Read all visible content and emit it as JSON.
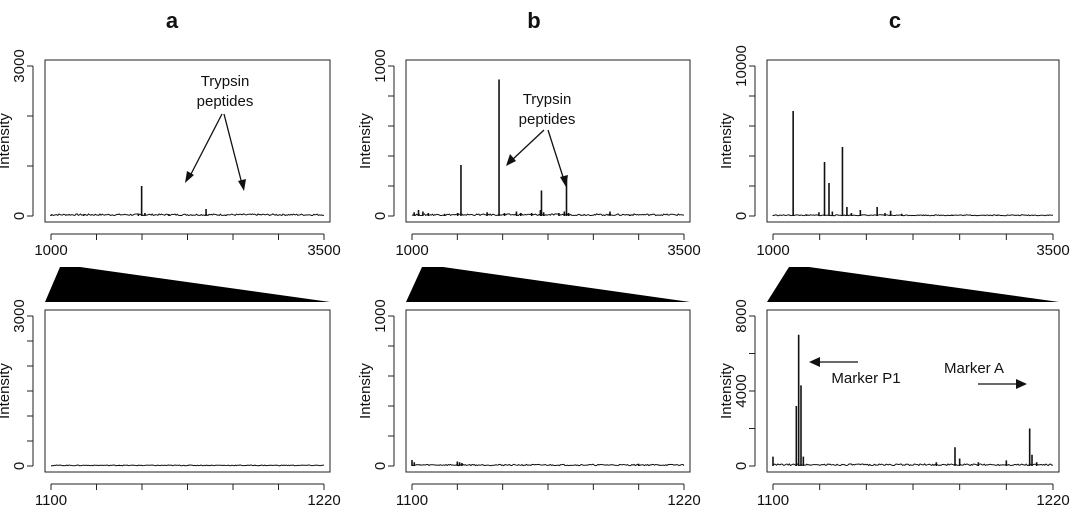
{
  "panel_letters": [
    "a",
    "b",
    "c"
  ],
  "annotations": {
    "trypsin_line1": "Trypsin",
    "trypsin_line2": "peptides",
    "marker_p1": "Marker P1",
    "marker_a": "Marker A"
  },
  "chart_data": [
    {
      "id": "a-top",
      "type": "line",
      "panel": "a",
      "ylabel": "Intensity",
      "xlim": [
        1000,
        3500
      ],
      "ylim": [
        0,
        3000
      ],
      "yticks": [
        0,
        1000,
        2000,
        3000
      ],
      "yticklabels": [
        "0",
        "",
        "",
        "3000"
      ],
      "xticklabels": [
        "1000",
        "3500"
      ],
      "baseline": 30,
      "peaks": [
        [
          1000,
          25
        ],
        [
          1300,
          20
        ],
        [
          1800,
          50
        ],
        [
          1830,
          600
        ],
        [
          1860,
          60
        ],
        [
          2080,
          40
        ],
        [
          2420,
          140
        ],
        [
          2600,
          20
        ]
      ]
    },
    {
      "id": "b-top",
      "type": "line",
      "panel": "b",
      "ylabel": "Intensity",
      "xlim": [
        1000,
        3500
      ],
      "ylim": [
        0,
        1000
      ],
      "yticks": [
        0,
        200,
        400,
        600,
        800,
        1000
      ],
      "yticklabels": [
        "0",
        "",
        "",
        "",
        "",
        "1000"
      ],
      "xticklabels": [
        "1000",
        "3500"
      ],
      "baseline": 10,
      "peaks": [
        [
          1020,
          25
        ],
        [
          1060,
          40
        ],
        [
          1100,
          30
        ],
        [
          1150,
          20
        ],
        [
          1300,
          15
        ],
        [
          1420,
          20
        ],
        [
          1450,
          340
        ],
        [
          1690,
          25
        ],
        [
          1800,
          910
        ],
        [
          1850,
          20
        ],
        [
          1960,
          30
        ],
        [
          2000,
          20
        ],
        [
          2100,
          20
        ],
        [
          2180,
          40
        ],
        [
          2190,
          170
        ],
        [
          2210,
          25
        ],
        [
          2350,
          20
        ],
        [
          2400,
          30
        ],
        [
          2420,
          270
        ],
        [
          2440,
          20
        ],
        [
          2820,
          30
        ],
        [
          3000,
          10
        ]
      ]
    },
    {
      "id": "c-top",
      "type": "line",
      "panel": "c",
      "ylabel": "Intensity",
      "xlim": [
        1000,
        3500
      ],
      "ylim": [
        0,
        10000
      ],
      "yticks": [
        0,
        2000,
        4000,
        6000,
        8000,
        10000
      ],
      "yticklabels": [
        "0",
        "",
        "",
        "",
        "",
        "10000"
      ],
      "xticklabels": [
        "1000",
        "3500"
      ],
      "baseline": 60,
      "peaks": [
        [
          1000,
          40
        ],
        [
          1180,
          7000
        ],
        [
          1300,
          80
        ],
        [
          1410,
          250
        ],
        [
          1460,
          3600
        ],
        [
          1500,
          2200
        ],
        [
          1530,
          300
        ],
        [
          1620,
          4600
        ],
        [
          1660,
          600
        ],
        [
          1700,
          200
        ],
        [
          1780,
          400
        ],
        [
          1930,
          600
        ],
        [
          2000,
          200
        ],
        [
          2050,
          350
        ],
        [
          2150,
          150
        ],
        [
          2600,
          80
        ],
        [
          3000,
          60
        ]
      ]
    },
    {
      "id": "a-bottom",
      "type": "line",
      "panel": "a",
      "ylabel": "Intensity",
      "xlim": [
        1100,
        1220
      ],
      "ylim": [
        0,
        3000
      ],
      "yticks": [
        0,
        500,
        1000,
        1500,
        2000,
        2500,
        3000
      ],
      "yticklabels": [
        "0",
        "",
        "",
        "",
        "",
        "",
        "3000"
      ],
      "xticklabels": [
        "1100",
        "1220"
      ],
      "baseline": 15,
      "peaks": [
        [
          1130,
          25
        ],
        [
          1160,
          20
        ],
        [
          1190,
          20
        ]
      ]
    },
    {
      "id": "b-bottom",
      "type": "line",
      "panel": "b",
      "ylabel": "Intensity",
      "xlim": [
        1100,
        1220
      ],
      "ylim": [
        0,
        1000
      ],
      "yticks": [
        0,
        200,
        400,
        600,
        800,
        1000
      ],
      "yticklabels": [
        "0",
        "",
        "",
        "",
        "",
        "1000"
      ],
      "xticklabels": [
        "1100",
        "1220"
      ],
      "baseline": 8,
      "peaks": [
        [
          1100,
          40
        ],
        [
          1101,
          25
        ],
        [
          1120,
          30
        ],
        [
          1121,
          25
        ],
        [
          1122,
          20
        ],
        [
          1200,
          15
        ]
      ]
    },
    {
      "id": "c-bottom",
      "type": "line",
      "panel": "c",
      "ylabel": "Intensity",
      "xlim": [
        1100,
        1220
      ],
      "ylim": [
        0,
        8000
      ],
      "yticks": [
        0,
        2000,
        4000,
        6000,
        8000
      ],
      "yticklabels": [
        "0",
        "",
        "4000",
        "",
        "8000"
      ],
      "xticklabels": [
        "1100",
        "1220"
      ],
      "baseline": 80,
      "peaks": [
        [
          1100,
          500
        ],
        [
          1110,
          3200
        ],
        [
          1111,
          7000
        ],
        [
          1112,
          4300
        ],
        [
          1113,
          500
        ],
        [
          1170,
          200
        ],
        [
          1178,
          1000
        ],
        [
          1180,
          400
        ],
        [
          1188,
          200
        ],
        [
          1200,
          300
        ],
        [
          1210,
          2000
        ],
        [
          1211,
          600
        ],
        [
          1213,
          200
        ]
      ]
    }
  ]
}
